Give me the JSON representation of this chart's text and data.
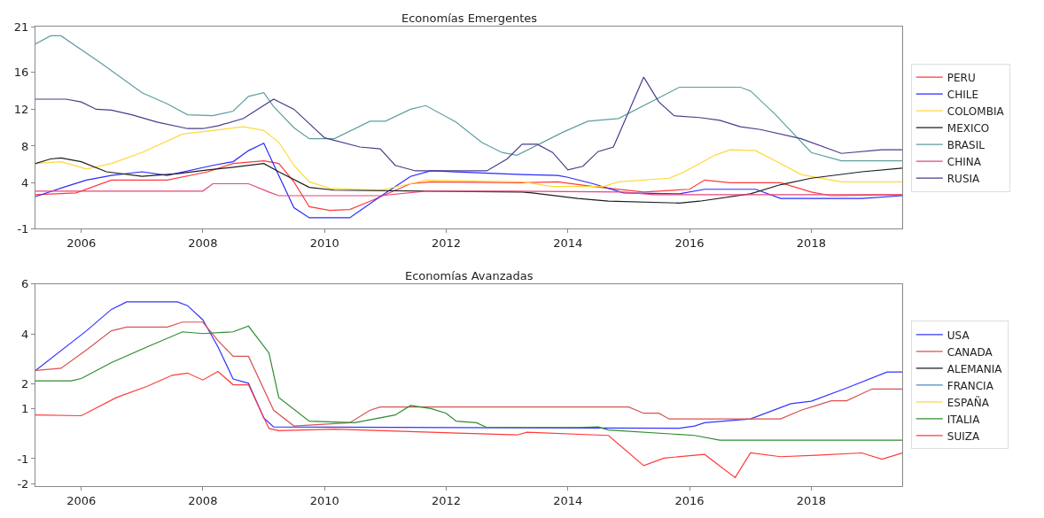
{
  "chart_data": [
    {
      "type": "line",
      "title": "Economías Emergentes",
      "legend": "right",
      "xlim": [
        "2005-04",
        "2019-07"
      ],
      "xticks": [
        "2006",
        "2008",
        "2010",
        "2012",
        "2014",
        "2016",
        "2018"
      ],
      "ylim": [
        -1,
        21
      ],
      "yticks": [
        -1,
        4,
        8,
        12,
        16,
        21
      ],
      "series": [
        {
          "name": "PERU",
          "color": "#ff3a3a",
          "x": [
            "2005-04",
            "2005-12",
            "2006-07",
            "2007-06",
            "2008-02",
            "2008-07",
            "2009-01",
            "2009-04",
            "2009-07",
            "2009-10",
            "2010-02",
            "2010-06",
            "2010-10",
            "2011-06",
            "2011-10",
            "2013-04",
            "2013-11",
            "2014-06",
            "2015-04",
            "2016-01",
            "2016-04",
            "2016-09",
            "2017-07",
            "2018-01",
            "2018-05",
            "2019-07"
          ],
          "values": [
            2.7,
            2.9,
            4.3,
            4.3,
            5.2,
            6.1,
            6.4,
            6.1,
            4.1,
            1.4,
            1.0,
            1.1,
            2.0,
            3.9,
            4.1,
            4.0,
            4.1,
            3.6,
            3.0,
            3.3,
            4.3,
            4.0,
            4.0,
            3.0,
            2.6,
            2.7
          ]
        },
        {
          "name": "CHILE",
          "color": "#2a2aff",
          "x": [
            "2005-04",
            "2005-10",
            "2006-02",
            "2006-07",
            "2007-01",
            "2007-06",
            "2008-03",
            "2008-07",
            "2008-10",
            "2009-01",
            "2009-04",
            "2009-07",
            "2009-10",
            "2010-06",
            "2010-12",
            "2011-06",
            "2011-10",
            "2013-04",
            "2013-11",
            "2014-01",
            "2014-06",
            "2014-12",
            "2015-11",
            "2016-04",
            "2017-02",
            "2017-07",
            "2018-11",
            "2019-07"
          ],
          "values": [
            2.5,
            3.6,
            4.3,
            4.8,
            5.2,
            4.8,
            5.9,
            6.3,
            7.5,
            8.3,
            4.8,
            1.3,
            0.2,
            0.2,
            2.5,
            4.7,
            5.3,
            4.9,
            4.8,
            4.6,
            3.9,
            2.9,
            2.8,
            3.3,
            3.3,
            2.3,
            2.3,
            2.6
          ]
        },
        {
          "name": "COLOMBIA",
          "color": "#ffd83a",
          "x": [
            "2005-04",
            "2005-09",
            "2006-02",
            "2006-07",
            "2007-01",
            "2007-09",
            "2008-03",
            "2008-09",
            "2009-01",
            "2009-04",
            "2009-07",
            "2009-10",
            "2010-02",
            "2010-12",
            "2011-06",
            "2011-09",
            "2013-04",
            "2013-10",
            "2014-08",
            "2014-11",
            "2015-09",
            "2015-12",
            "2016-06",
            "2016-09",
            "2017-02",
            "2017-07",
            "2017-11",
            "2018-07",
            "2019-07"
          ],
          "values": [
            6.1,
            6.3,
            5.5,
            6.1,
            7.3,
            9.3,
            9.7,
            10.1,
            9.7,
            8.4,
            5.9,
            4.1,
            3.4,
            3.2,
            3.9,
            4.3,
            4.1,
            3.6,
            3.6,
            4.1,
            4.5,
            5.2,
            7.0,
            7.6,
            7.5,
            6.1,
            4.9,
            4.1,
            4.1
          ]
        },
        {
          "name": "MEXICO",
          "color": "#1e1e1e",
          "x": [
            "2005-04",
            "2005-07",
            "2005-09",
            "2006-01",
            "2006-06",
            "2007-01",
            "2007-08",
            "2008-02",
            "2008-07",
            "2009-01",
            "2009-04",
            "2009-10",
            "2010-03",
            "2013-04",
            "2013-06",
            "2014-03",
            "2014-09",
            "2015-11",
            "2016-03",
            "2017-01",
            "2017-07",
            "2018-01",
            "2018-11",
            "2019-07"
          ],
          "values": [
            6.1,
            6.6,
            6.7,
            6.3,
            5.2,
            4.7,
            5.0,
            5.4,
            5.7,
            6.1,
            5.2,
            3.5,
            3.2,
            3.0,
            2.9,
            2.3,
            2.0,
            1.8,
            2.0,
            2.8,
            3.8,
            4.5,
            5.2,
            5.6
          ]
        },
        {
          "name": "BRASIL",
          "color": "#5f9ea0",
          "x": [
            "2005-04",
            "2005-07",
            "2005-09",
            "2006-05",
            "2007-01",
            "2007-06",
            "2007-10",
            "2008-03",
            "2008-07",
            "2008-10",
            "2009-01",
            "2009-03",
            "2009-07",
            "2009-10",
            "2010-03",
            "2010-10",
            "2011-01",
            "2011-06",
            "2011-09",
            "2012-03",
            "2012-08",
            "2012-12",
            "2013-03",
            "2013-12",
            "2014-05",
            "2014-11",
            "2015-11",
            "2016-11",
            "2017-01",
            "2017-06",
            "2018-01",
            "2018-07",
            "2019-07"
          ],
          "values": [
            19.1,
            20.0,
            20.0,
            17.0,
            13.8,
            12.6,
            11.4,
            11.3,
            11.8,
            13.4,
            13.8,
            12.3,
            10.0,
            8.8,
            8.8,
            10.7,
            10.7,
            12.0,
            12.4,
            10.6,
            8.4,
            7.3,
            7.0,
            9.5,
            10.7,
            11.0,
            14.4,
            14.4,
            14.0,
            11.4,
            7.3,
            6.4,
            6.4
          ]
        },
        {
          "name": "CHINA",
          "color": "#e8457a",
          "x": [
            "2005-04",
            "2008-01",
            "2008-03",
            "2008-10",
            "2009-02",
            "2009-04",
            "2010-12",
            "2011-09",
            "2013-02",
            "2014-12",
            "2015-06",
            "2019-07"
          ],
          "values": [
            3.1,
            3.1,
            3.9,
            3.9,
            3.0,
            2.6,
            2.6,
            3.1,
            3.1,
            3.0,
            2.7,
            2.7
          ]
        },
        {
          "name": "RUSIA",
          "color": "#483d8b",
          "x": [
            "2005-04",
            "2005-10",
            "2006-01",
            "2006-04",
            "2006-07",
            "2006-11",
            "2007-04",
            "2007-10",
            "2008-01",
            "2008-04",
            "2008-09",
            "2009-03",
            "2009-07",
            "2010-01",
            "2010-08",
            "2010-12",
            "2011-03",
            "2011-07",
            "2012-09",
            "2013-01",
            "2013-04",
            "2013-07",
            "2013-10",
            "2014-01",
            "2014-04",
            "2014-07",
            "2014-10",
            "2015-04",
            "2015-07",
            "2015-10",
            "2016-03",
            "2016-07",
            "2016-11",
            "2017-03",
            "2017-11",
            "2018-07",
            "2019-03",
            "2019-07"
          ],
          "values": [
            13.1,
            13.1,
            12.8,
            12.0,
            11.9,
            11.4,
            10.6,
            9.9,
            9.9,
            10.2,
            11.0,
            13.1,
            12.0,
            8.9,
            7.9,
            7.7,
            5.9,
            5.3,
            5.3,
            6.6,
            8.2,
            8.2,
            7.3,
            5.4,
            5.8,
            7.4,
            7.9,
            15.5,
            12.8,
            11.3,
            11.1,
            10.8,
            10.1,
            9.8,
            8.8,
            7.2,
            7.6,
            7.6
          ]
        }
      ]
    },
    {
      "type": "line",
      "title": "Economías Avanzadas",
      "legend": "right",
      "xlim": [
        "2005-04",
        "2019-07"
      ],
      "xticks": [
        "2006",
        "2008",
        "2010",
        "2012",
        "2014",
        "2016",
        "2018"
      ],
      "ylim": [
        -2.1,
        6
      ],
      "yticks": [
        -2,
        -1,
        1,
        2,
        4,
        6
      ],
      "series": [
        {
          "name": "USA",
          "color": "#3434ff",
          "x": [
            "2005-04",
            "2006-02",
            "2006-07",
            "2006-10",
            "2007-08",
            "2007-10",
            "2008-01",
            "2008-04",
            "2008-07",
            "2008-10",
            "2009-01",
            "2009-03",
            "2015-11",
            "2016-02",
            "2016-04",
            "2017-01",
            "2017-09",
            "2018-01",
            "2018-08",
            "2019-04",
            "2019-07"
          ],
          "values": [
            2.53,
            4.12,
            4.98,
            5.28,
            5.28,
            5.13,
            4.56,
            3.48,
            2.19,
            2.02,
            0.63,
            0.27,
            0.22,
            0.31,
            0.44,
            0.59,
            1.2,
            1.3,
            1.83,
            2.47,
            2.47
          ]
        },
        {
          "name": "CANADA",
          "color": "#d9534f",
          "x": [
            "2005-04",
            "2005-09",
            "2006-02",
            "2006-07",
            "2006-10",
            "2007-06",
            "2007-09",
            "2008-01",
            "2008-04",
            "2008-07",
            "2008-10",
            "2009-03",
            "2009-07",
            "2010-06",
            "2010-10",
            "2010-12",
            "2015-01",
            "2015-04",
            "2015-07",
            "2015-09",
            "2017-07",
            "2017-11",
            "2018-02",
            "2018-05",
            "2018-08",
            "2019-01",
            "2019-07"
          ],
          "values": [
            2.53,
            2.62,
            3.35,
            4.12,
            4.27,
            4.27,
            4.47,
            4.47,
            3.73,
            3.1,
            3.1,
            0.94,
            0.31,
            0.44,
            0.94,
            1.07,
            1.07,
            0.82,
            0.82,
            0.59,
            0.59,
            0.94,
            1.13,
            1.32,
            1.32,
            1.79,
            1.79
          ]
        },
        {
          "name": "ALEMANIA",
          "color": "#1e1e1e"
        },
        {
          "name": "FRANCIA",
          "color": "#4f86c6"
        },
        {
          "name": "ESPAÑA",
          "color": "#ffd83a"
        },
        {
          "name": "ITALIA",
          "color": "#2e8b2e",
          "x": [
            "2005-04",
            "2005-11",
            "2006-01",
            "2006-07",
            "2007-02",
            "2007-09",
            "2008-01",
            "2008-07",
            "2008-10",
            "2009-02",
            "2009-04",
            "2009-10",
            "2010-07",
            "2011-03",
            "2011-06",
            "2011-10",
            "2012-01",
            "2012-03",
            "2012-07",
            "2012-09",
            "2014-03",
            "2014-07",
            "2014-09",
            "2016-02",
            "2016-07",
            "2019-07"
          ],
          "values": [
            2.12,
            2.12,
            2.21,
            2.85,
            3.48,
            4.08,
            4.01,
            4.08,
            4.31,
            3.23,
            1.45,
            0.5,
            0.44,
            0.75,
            1.13,
            1.01,
            0.82,
            0.5,
            0.44,
            0.25,
            0.25,
            0.27,
            0.15,
            -0.07,
            -0.26,
            -0.26
          ]
        },
        {
          "name": "SUIZA",
          "color": "#ff3a3a",
          "x": [
            "2005-04",
            "2006-01",
            "2006-08",
            "2007-02",
            "2007-07",
            "2007-10",
            "2008-01",
            "2008-04",
            "2008-07",
            "2008-10",
            "2009-02",
            "2009-04",
            "2010-03",
            "2011-10",
            "2013-03",
            "2013-05",
            "2014-09",
            "2015-04",
            "2015-08",
            "2016-02",
            "2016-04",
            "2016-10",
            "2017-01",
            "2017-07",
            "2018-02",
            "2018-11",
            "2019-03",
            "2019-07"
          ],
          "values": [
            0.75,
            0.72,
            1.45,
            1.9,
            2.34,
            2.43,
            2.15,
            2.49,
            1.96,
            1.96,
            0.21,
            0.12,
            0.18,
            0.06,
            -0.05,
            0.06,
            -0.07,
            -1.28,
            -0.98,
            -0.86,
            -0.83,
            -1.76,
            -0.77,
            -0.92,
            -0.86,
            -0.77,
            -1.02,
            -0.77
          ]
        }
      ]
    }
  ]
}
